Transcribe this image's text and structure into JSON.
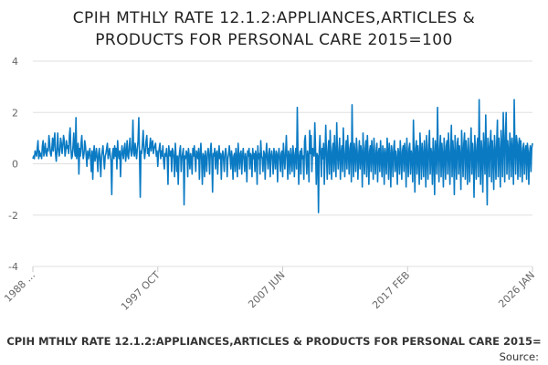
{
  "title_line1": "CPIH MTHLY RATE 12.1.2:APPLIANCES,ARTICLES &",
  "title_line2": "PRODUCTS FOR PERSONAL CARE 2015=100",
  "footer": {
    "series_label": "CPIH MTHLY RATE 12.1.2:APPLIANCES,ARTICLES & PRODUCTS FOR PERSONAL CARE 2015=",
    "source_label": "Source:"
  },
  "colors": {
    "line": "#0a7ac3",
    "grid": "#e0e0e0",
    "text": "#666666"
  },
  "chart_data": {
    "type": "line",
    "frequency": "monthly",
    "start": "1988 JAN",
    "end": "2026 JAN",
    "x_tick_labels": [
      "1988 ...",
      "1997 OCT",
      "2007 JUN",
      "2017 FEB",
      "2026 JAN"
    ],
    "y_ticks": [
      4,
      2,
      0,
      -2,
      -4
    ],
    "ylim": [
      -4,
      4
    ],
    "grid": true,
    "legend": "none",
    "values": [
      0.2,
      0.3,
      0.2,
      0.5,
      0.4,
      0.3,
      0.6,
      0.9,
      0.2,
      0.5,
      0.3,
      0.4,
      0.2,
      0.7,
      0.9,
      0.3,
      0.5,
      0.8,
      0.4,
      0.3,
      0.6,
      0.5,
      1.1,
      0.8,
      0.4,
      0.3,
      0.6,
      1.0,
      0.5,
      0.9,
      1.2,
      0.4,
      0.1,
      0.5,
      1.2,
      0.6,
      0.3,
      0.5,
      1.0,
      0.8,
      0.4,
      0.7,
      1.1,
      0.9,
      0.3,
      0.5,
      0.9,
      0.6,
      0.7,
      0.4,
      1.1,
      1.4,
      0.6,
      0.2,
      0.3,
      0.7,
      1.2,
      0.5,
      0.3,
      1.8,
      0.2,
      0.5,
      0.8,
      -0.4,
      0.6,
      0.3,
      0.8,
      1.1,
      0.5,
      0.2,
      0.4,
      0.9,
      0.7,
      0.3,
      -0.1,
      0.5,
      0.2,
      0.4,
      0.6,
      0.2,
      -0.3,
      0.5,
      -0.6,
      0.4,
      0.7,
      0.1,
      0.3,
      0.6,
      0.2,
      -0.3,
      0.4,
      0.6,
      0.1,
      -0.5,
      0.3,
      0.5,
      0.7,
      0.2,
      -0.2,
      0.3,
      0.4,
      0.6,
      0.8,
      0.2,
      0.4,
      0.6,
      0.3,
      0.1,
      -1.2,
      0.4,
      0.6,
      0.2,
      0.7,
      0.3,
      0.6,
      -0.2,
      0.9,
      0.4,
      0.2,
      0.5,
      -0.5,
      0.3,
      0.7,
      0.4,
      0.2,
      0.6,
      0.8,
      0.1,
      0.4,
      0.9,
      0.3,
      0.2,
      0.7,
      1.0,
      0.5,
      0.3,
      0.6,
      1.7,
      0.4,
      0.3,
      0.8,
      0.5,
      0.2,
      0.6,
      0.9,
      1.8,
      0.3,
      -1.3,
      0.5,
      0.4,
      0.8,
      1.3,
      0.6,
      0.2,
      0.5,
      0.9,
      1.1,
      0.4,
      0.6,
      0.3,
      0.7,
      1.0,
      0.5,
      0.8,
      0.9,
      0.4,
      0.6,
      0.7,
      0.8,
      0.3,
      0.5,
      -0.1,
      0.4,
      0.6,
      0.8,
      0.2,
      0.5,
      0.3,
      0.7,
      0.1,
      -0.2,
      0.4,
      0.3,
      0.6,
      0.2,
      -0.8,
      0.7,
      0.4,
      0.3,
      0.5,
      -0.3,
      0.6,
      0.5,
      0.2,
      -0.5,
      0.8,
      0.3,
      -0.3,
      0.3,
      -0.8,
      0.2,
      0.5,
      0.7,
      -0.3,
      0.2,
      0.4,
      0.6,
      -1.6,
      0.3,
      0.2,
      0.5,
      0.4,
      -0.5,
      0.6,
      0.3,
      -0.2,
      0.4,
      0.2,
      -0.4,
      0.6,
      0.3,
      0.7,
      0.2,
      -0.3,
      0.5,
      0.4,
      0.2,
      0.6,
      -0.6,
      0.3,
      0.8,
      0.2,
      -0.8,
      0.4,
      0.3,
      -0.5,
      0.5,
      0.2,
      -0.3,
      0.4,
      0.6,
      0.3,
      -0.4,
      0.5,
      0.8,
      0.2,
      -1.1,
      0.4,
      0.3,
      0.6,
      -0.2,
      0.4,
      0.5,
      -0.4,
      0.3,
      0.7,
      0.2,
      0.4,
      -0.6,
      0.3,
      0.5,
      0.2,
      -0.3,
      0.4,
      0.6,
      0.3,
      -0.5,
      0.2,
      0.4,
      0.7,
      0.3,
      -0.2,
      0.5,
      0.2,
      -0.6,
      0.3,
      0.4,
      -0.3,
      0.6,
      0.2,
      -0.5,
      0.8,
      0.3,
      -0.2,
      0.4,
      0.5,
      -0.4,
      0.3,
      0.6,
      0.2,
      -0.3,
      0.4,
      0.2,
      -0.7,
      0.5,
      0.3,
      0.6,
      -0.2,
      0.4,
      0.3,
      -0.5,
      0.6,
      0.2,
      0.4,
      -0.3,
      0.5,
      0.3,
      -0.8,
      0.7,
      0.2,
      0.4,
      -0.4,
      0.9,
      0.3,
      0.2,
      -0.3,
      0.5,
      0.4,
      -0.6,
      0.3,
      0.8,
      0.2,
      -0.2,
      0.4,
      0.6,
      -0.5,
      0.3,
      0.5,
      0.2,
      -0.4,
      0.6,
      0.3,
      -0.2,
      0.5,
      0.4,
      -0.7,
      0.3,
      0.6,
      0.2,
      -0.3,
      0.4,
      0.5,
      -0.5,
      0.8,
      0.3,
      -0.2,
      0.4,
      1.1,
      0.2,
      -0.6,
      0.5,
      0.3,
      -0.4,
      0.6,
      0.2,
      -0.3,
      0.7,
      0.4,
      -0.5,
      0.3,
      0.6,
      -0.2,
      2.2,
      0.4,
      -0.8,
      0.3,
      0.5,
      -0.4,
      0.6,
      0.2,
      0.3,
      -0.6,
      0.9,
      1.1,
      0.2,
      -0.4,
      0.5,
      0.3,
      -0.7,
      1.3,
      0.4,
      1.1,
      -0.3,
      0.6,
      0.4,
      0.3,
      1.6,
      0.6,
      -0.8,
      0.4,
      0.3,
      -1.9,
      0.5,
      1.1,
      0.4,
      -0.5,
      0.6,
      0.2,
      0.8,
      -0.8,
      0.4,
      1.5,
      0.3,
      -0.6,
      0.5,
      0.9,
      -0.4,
      1.3,
      0.3,
      -0.6,
      0.5,
      0.8,
      -0.3,
      1.1,
      0.2,
      -0.5,
      1.6,
      0.4,
      -0.2,
      0.5,
      1.0,
      -0.6,
      0.4,
      0.7,
      -0.3,
      1.4,
      0.5,
      -0.5,
      0.3,
      0.9,
      -0.2,
      1.1,
      0.4,
      -0.4,
      0.6,
      0.8,
      -0.7,
      2.3,
      0.3,
      -0.5,
      0.8,
      0.4,
      -0.3,
      1.0,
      0.5,
      -0.6,
      0.3,
      0.9,
      -0.2,
      0.7,
      0.4,
      -0.9,
      1.2,
      0.3,
      -0.4,
      0.6,
      0.9,
      -0.5,
      1.1,
      0.3,
      -0.8,
      0.5,
      0.7,
      -0.3,
      0.9,
      0.4,
      -0.6,
      1.0,
      0.3,
      -0.4,
      0.5,
      0.8,
      -0.7,
      0.4,
      0.6,
      -0.3,
      0.9,
      0.2,
      -0.5,
      0.7,
      0.4,
      -0.8,
      0.6,
      0.3,
      -0.4,
      1.0,
      0.5,
      -0.6,
      0.8,
      0.3,
      -0.9,
      0.7,
      0.4,
      -0.5,
      0.6,
      0.9,
      -0.3,
      0.5,
      0.2,
      -0.8,
      0.6,
      0.4,
      -0.4,
      0.9,
      0.3,
      -0.6,
      0.5,
      0.7,
      -0.3,
      0.8,
      0.4,
      -0.9,
      1.0,
      0.3,
      -0.5,
      0.6,
      0.8,
      -0.4,
      0.5,
      0.3,
      -0.7,
      1.7,
      0.4,
      -1.1,
      0.6,
      0.9,
      -0.4,
      0.7,
      0.3,
      -0.8,
      1.2,
      0.5,
      -0.6,
      0.8,
      0.3,
      -0.5,
      0.9,
      0.4,
      -0.9,
      1.1,
      0.3,
      -0.6,
      0.7,
      1.3,
      -0.4,
      0.6,
      0.4,
      -0.8,
      1.0,
      0.3,
      -1.2,
      0.9,
      0.5,
      -0.4,
      2.2,
      0.4,
      -0.7,
      0.6,
      1.1,
      -0.5,
      0.8,
      0.3,
      -0.9,
      1.0,
      0.4,
      -0.6,
      0.7,
      0.9,
      -0.4,
      1.2,
      0.3,
      -0.8,
      0.6,
      1.5,
      -0.5,
      0.9,
      0.4,
      -1.2,
      1.1,
      0.3,
      -0.6,
      0.8,
      1.0,
      -0.4,
      0.7,
      0.3,
      -1.0,
      1.3,
      0.5,
      -0.5,
      0.8,
      1.2,
      -0.6,
      0.9,
      0.4,
      -0.8,
      1.0,
      0.3,
      -0.7,
      0.6,
      1.4,
      -0.4,
      0.8,
      0.3,
      -1.3,
      1.1,
      0.4,
      -0.6,
      0.7,
      1.0,
      -0.5,
      2.5,
      0.3,
      -0.8,
      0.9,
      0.4,
      -1.1,
      1.2,
      0.5,
      -0.4,
      1.9,
      0.3,
      -1.6,
      1.0,
      0.6,
      -0.5,
      0.8,
      1.3,
      -0.7,
      0.9,
      0.4,
      -1.0,
      1.1,
      0.5,
      -0.6,
      0.8,
      1.7,
      -0.5,
      1.0,
      0.4,
      -0.9,
      1.3,
      0.6,
      -0.5,
      2.0,
      0.8,
      -0.7,
      1.1,
      2.0,
      -0.4,
      0.9,
      0.5,
      -0.6,
      1.2,
      0.7,
      -0.5,
      1.0,
      0.4,
      -0.8,
      2.5,
      0.6,
      -0.4,
      1.1,
      0.8,
      -0.6,
      0.7,
      1.0,
      -0.5,
      0.9,
      0.4,
      -0.7,
      0.6,
      0.8,
      -0.4,
      0.5,
      0.7,
      -0.6,
      0.8,
      0.5,
      -0.8,
      0.4,
      0.7,
      -0.3,
      0.6,
      0.8
    ]
  }
}
